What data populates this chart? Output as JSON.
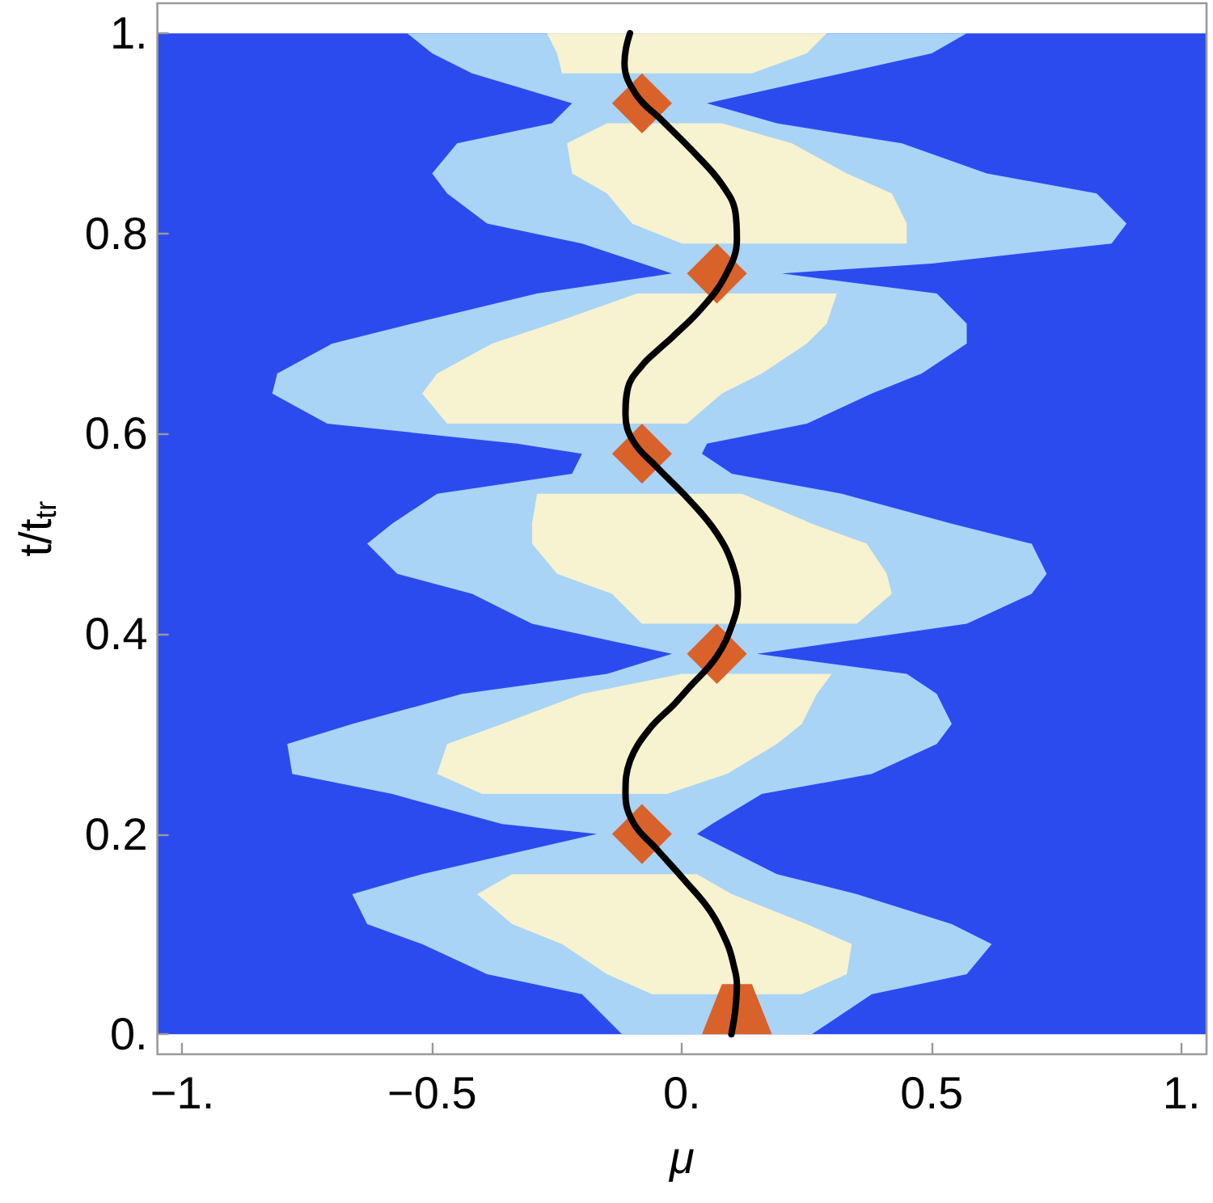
{
  "chart_data": {
    "type": "line",
    "xlabel": "μ",
    "ylabel": "t/t$_{tr}$",
    "xlim": [
      -1.05,
      1.05
    ],
    "ylim": [
      -0.02,
      1.03
    ],
    "xticks": [
      {
        "value": -1,
        "label": "−1."
      },
      {
        "value": -0.5,
        "label": "−0.5"
      },
      {
        "value": 0,
        "label": "0."
      },
      0.5,
      {
        "value": 1,
        "label": "1."
      }
    ],
    "yticks": [
      {
        "value": 0,
        "label": "0."
      },
      0.2,
      0.4,
      0.6,
      0.8,
      {
        "value": 1,
        "label": "1."
      }
    ],
    "bands": [
      {
        "axis": "y",
        "from": 0,
        "to": 1,
        "color": "#2c4bee"
      }
    ],
    "series": [
      {
        "type": "area",
        "color": "#a9d4f6",
        "x": [
          0.26,
          0.38,
          0.57,
          0.62,
          0.54,
          0.35,
          0.19,
          0.03,
          0.06,
          0.16,
          0.38,
          0.51,
          0.54,
          0.51,
          0.45,
          0.15,
          0.57,
          0.7,
          0.73,
          0.7,
          0.54,
          0.32,
          0.1,
          0.04,
          0.05,
          0.25,
          0.38,
          0.48,
          0.57,
          0.57,
          0.51,
          0.2,
          0.5,
          0.86,
          0.89,
          0.83,
          0.61,
          0.44,
          0.19,
          0.05,
          0.32,
          0.5,
          0.57,
          -0.55,
          -0.5,
          -0.42,
          -0.22,
          -0.26,
          -0.45,
          -0.5,
          -0.47,
          -0.39,
          -0.2,
          -0.02,
          -0.29,
          -0.54,
          -0.7,
          -0.81,
          -0.82,
          -0.71,
          -0.33,
          -0.2,
          -0.22,
          -0.49,
          -0.58,
          -0.63,
          -0.57,
          -0.42,
          -0.3,
          -0.02,
          -0.15,
          -0.44,
          -0.66,
          -0.79,
          -0.78,
          -0.58,
          -0.36,
          -0.17,
          -0.52,
          -0.66,
          -0.63,
          -0.52,
          -0.39,
          -0.2,
          -0.12
        ],
        "values": [
          0,
          0.04,
          0.06,
          0.09,
          0.11,
          0.14,
          0.16,
          0.2,
          0.21,
          0.24,
          0.26,
          0.29,
          0.31,
          0.34,
          0.36,
          0.38,
          0.41,
          0.44,
          0.46,
          0.49,
          0.51,
          0.54,
          0.56,
          0.58,
          0.59,
          0.61,
          0.64,
          0.66,
          0.69,
          0.71,
          0.74,
          0.76,
          0.77,
          0.79,
          0.81,
          0.84,
          0.86,
          0.89,
          0.91,
          0.93,
          0.96,
          0.98,
          1,
          1,
          0.98,
          0.96,
          0.93,
          0.91,
          0.89,
          0.86,
          0.84,
          0.81,
          0.79,
          0.76,
          0.74,
          0.71,
          0.69,
          0.66,
          0.64,
          0.61,
          0.59,
          0.58,
          0.56,
          0.54,
          0.51,
          0.49,
          0.46,
          0.44,
          0.41,
          0.38,
          0.36,
          0.34,
          0.31,
          0.29,
          0.26,
          0.24,
          0.21,
          0.2,
          0.16,
          0.14,
          0.11,
          0.09,
          0.06,
          0.04,
          0
        ]
      },
      {
        "type": "area",
        "color": "#f7f2cf",
        "x": [
          0.24,
          0.33,
          0.34,
          0.25,
          0.1,
          0.03,
          -0.34,
          -0.41,
          -0.34,
          -0.24,
          -0.15,
          -0.06
        ],
        "values": [
          0.04,
          0.06,
          0.09,
          0.11,
          0.14,
          0.16,
          0.16,
          0.14,
          0.11,
          0.09,
          0.06,
          0.04
        ]
      },
      {
        "type": "area",
        "color": "#f7f2cf",
        "x": [
          -0.03,
          0.09,
          0.19,
          0.24,
          0.27,
          0.3,
          0,
          -0.2,
          -0.36,
          -0.47,
          -0.49,
          -0.4
        ],
        "values": [
          0.24,
          0.26,
          0.29,
          0.31,
          0.34,
          0.36,
          0.36,
          0.34,
          0.31,
          0.29,
          0.26,
          0.24
        ]
      },
      {
        "type": "area",
        "color": "#f7f2cf",
        "x": [
          0.35,
          0.42,
          0.41,
          0.37,
          0.26,
          0.12,
          -0.29,
          -0.3,
          -0.3,
          -0.25,
          -0.14,
          -0.08
        ],
        "values": [
          0.41,
          0.44,
          0.46,
          0.49,
          0.51,
          0.54,
          0.54,
          0.51,
          0.49,
          0.46,
          0.44,
          0.41
        ]
      },
      {
        "type": "area",
        "color": "#f7f2cf",
        "x": [
          0.01,
          0.08,
          0.16,
          0.25,
          0.29,
          0.31,
          -0.09,
          -0.26,
          -0.38,
          -0.49,
          -0.52,
          -0.47
        ],
        "values": [
          0.61,
          0.64,
          0.66,
          0.69,
          0.71,
          0.74,
          0.74,
          0.71,
          0.69,
          0.66,
          0.64,
          0.61
        ]
      },
      {
        "type": "area",
        "color": "#f7f2cf",
        "x": [
          0.45,
          0.45,
          0.42,
          0.33,
          0.22,
          0.08,
          -0.15,
          -0.23,
          -0.22,
          -0.15,
          -0.1,
          0
        ],
        "values": [
          0.79,
          0.81,
          0.84,
          0.86,
          0.89,
          0.91,
          0.91,
          0.89,
          0.86,
          0.84,
          0.81,
          0.79
        ]
      },
      {
        "type": "area",
        "color": "#f7f2cf",
        "x": [
          0.14,
          0.25,
          0.29,
          -0.27,
          -0.25,
          -0.24
        ],
        "values": [
          0.96,
          0.98,
          1,
          1,
          0.98,
          0.96
        ]
      },
      {
        "type": "area",
        "color": "#d9622b",
        "x": [
          0.04,
          0.08,
          0.14,
          0.18
        ],
        "values": [
          0,
          0.05,
          0.05,
          0
        ]
      },
      {
        "type": "area",
        "color": "#d9622b",
        "x": [
          -0.08,
          -0.02,
          -0.08,
          -0.14
        ],
        "values": [
          0.17,
          0.2,
          0.23,
          0.2
        ]
      },
      {
        "type": "area",
        "color": "#d9622b",
        "x": [
          0.07,
          0.13,
          0.07,
          0.01
        ],
        "values": [
          0.35,
          0.38,
          0.41,
          0.38
        ]
      },
      {
        "type": "area",
        "color": "#d9622b",
        "x": [
          -0.08,
          -0.02,
          -0.08,
          -0.14
        ],
        "values": [
          0.55,
          0.58,
          0.61,
          0.58
        ]
      },
      {
        "type": "area",
        "color": "#d9622b",
        "x": [
          0.07,
          0.13,
          0.07,
          0.01
        ],
        "values": [
          0.73,
          0.76,
          0.79,
          0.76
        ]
      },
      {
        "type": "area",
        "color": "#d9622b",
        "x": [
          -0.08,
          -0.02,
          -0.08,
          -0.14
        ],
        "values": [
          0.9,
          0.93,
          0.96,
          0.93
        ]
      },
      {
        "type": "line",
        "color": "#000000",
        "x": [
          0.099,
          0.107,
          0.11,
          0.103,
          0.091,
          0.058,
          0.005,
          -0.049,
          -0.097,
          -0.113,
          -0.104,
          -0.065,
          -0.015,
          0.012,
          0.069,
          0.101,
          0.112,
          0.101,
          0.069,
          0.016,
          -0.049,
          -0.097,
          -0.113,
          -0.108,
          -0.08,
          -0.047,
          -0.018,
          0.037,
          0.085,
          0.11,
          0.107,
          0.08,
          0.026,
          -0.038,
          -0.092,
          -0.115,
          -0.112,
          -0.104
        ],
        "values": [
          0,
          0.025,
          0.05,
          0.07,
          0.09,
          0.122,
          0.154,
          0.184,
          0.211,
          0.24,
          0.273,
          0.305,
          0.33,
          0.345,
          0.377,
          0.41,
          0.437,
          0.469,
          0.501,
          0.533,
          0.566,
          0.592,
          0.619,
          0.646,
          0.668,
          0.684,
          0.697,
          0.724,
          0.756,
          0.794,
          0.821,
          0.849,
          0.88,
          0.912,
          0.939,
          0.97,
          0.985,
          1
        ]
      }
    ]
  }
}
